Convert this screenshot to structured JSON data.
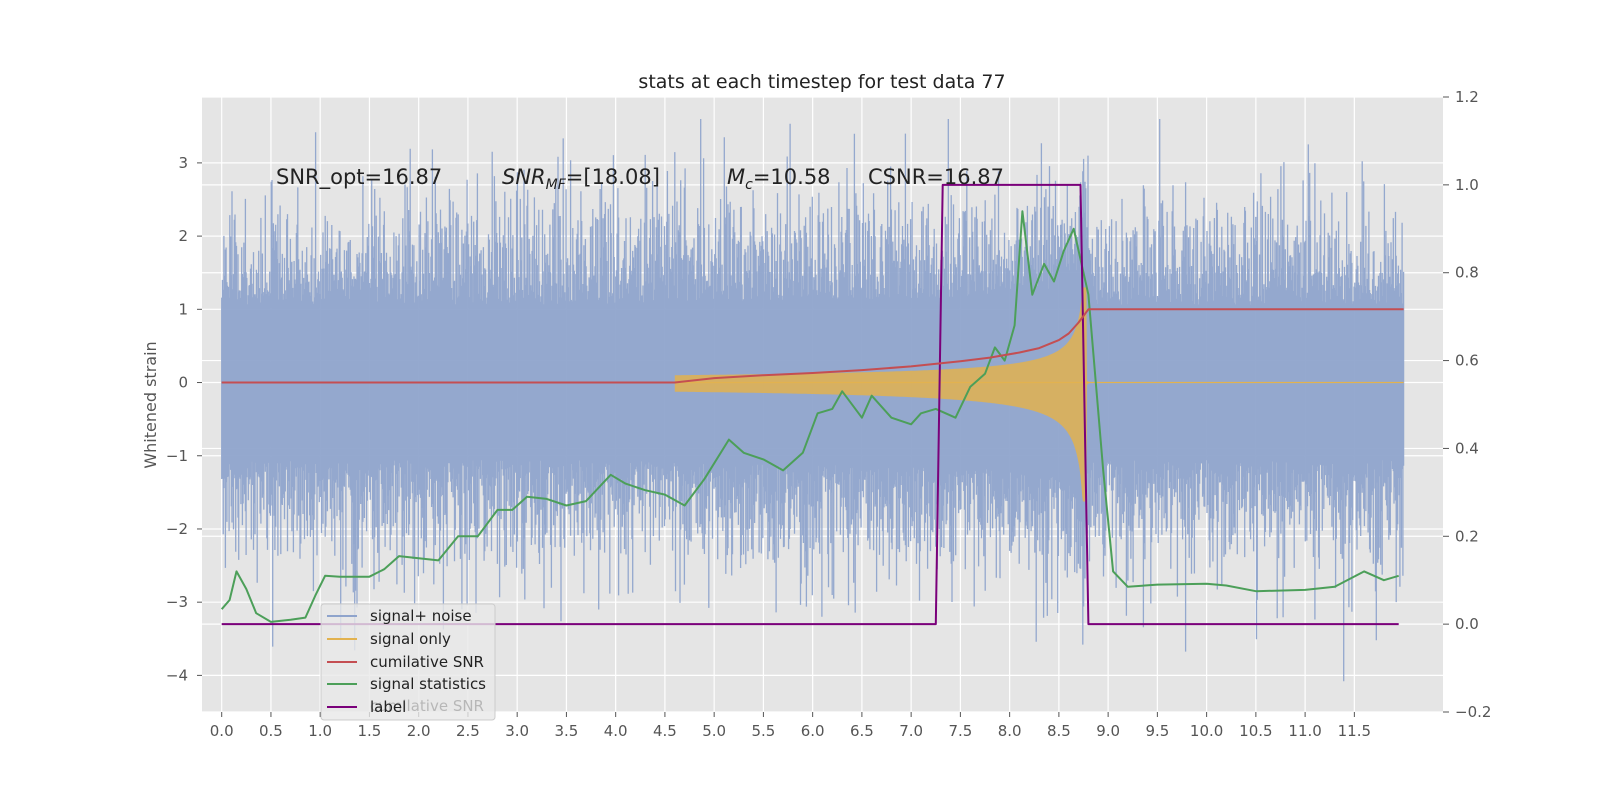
{
  "chart_data": {
    "type": "line",
    "title": "stats at each timestep for test data 77",
    "ylabel": "Whitened strain",
    "xlim": [
      -0.2,
      12.4
    ],
    "ylim": [
      -4.5,
      3.9
    ],
    "ylim_right": [
      -0.2,
      1.2
    ],
    "xticks": [
      "0.0",
      "0.5",
      "1.0",
      "1.5",
      "2.0",
      "2.5",
      "3.0",
      "3.5",
      "4.0",
      "4.5",
      "5.0",
      "5.5",
      "6.0",
      "6.5",
      "7.0",
      "7.5",
      "8.0",
      "8.5",
      "9.0",
      "9.5",
      "10.0",
      "10.5",
      "11.0",
      "11.5"
    ],
    "yticks_left": [
      "−4",
      "−3",
      "−2",
      "−1",
      "0",
      "1",
      "2",
      "3"
    ],
    "yticks_right": [
      "−0.2",
      "0.0",
      "0.2",
      "0.4",
      "0.6",
      "0.8",
      "1.0",
      "1.2"
    ],
    "grid": true,
    "legend_position": "lower-left",
    "annotations": {
      "snr_opt": "SNR_opt=16.87",
      "snr_mf_main": "SNR",
      "snr_mf_sub": "MF",
      "snr_mf_val": "=[18.08]",
      "mc_main": "M",
      "mc_sub": "c",
      "mc_val": "=10.58",
      "csnr": "CSNR=16.87"
    },
    "legend": {
      "items": [
        "signal+ noise",
        "signal only",
        "cumilative SNR",
        "signal statistics",
        "label"
      ],
      "ghost_text": "cumilative SNR"
    },
    "colors": {
      "noise": "#8fa4cc",
      "signal": "#e2b24f",
      "cumsnr": "#c44e52",
      "stats": "#4c9f59",
      "label": "#7a007a",
      "plot_bg": "#e5e5e5"
    },
    "series": [
      {
        "name": "cumilative SNR",
        "axis": "left",
        "points": [
          [
            0.0,
            0.0
          ],
          [
            1.0,
            0.0
          ],
          [
            2.0,
            0.0
          ],
          [
            3.0,
            0.0
          ],
          [
            4.0,
            0.0
          ],
          [
            4.6,
            0.0
          ],
          [
            5.0,
            0.06
          ],
          [
            5.5,
            0.1
          ],
          [
            6.0,
            0.13
          ],
          [
            6.5,
            0.17
          ],
          [
            7.0,
            0.22
          ],
          [
            7.5,
            0.29
          ],
          [
            7.8,
            0.34
          ],
          [
            8.1,
            0.41
          ],
          [
            8.3,
            0.47
          ],
          [
            8.5,
            0.58
          ],
          [
            8.6,
            0.67
          ],
          [
            8.7,
            0.82
          ],
          [
            8.8,
            1.0
          ],
          [
            9.0,
            1.0
          ],
          [
            10.0,
            1.0
          ],
          [
            11.0,
            1.0
          ],
          [
            12.0,
            1.0
          ]
        ]
      },
      {
        "name": "signal statistics",
        "axis": "right",
        "points": [
          [
            0.0,
            0.034
          ],
          [
            0.08,
            0.055
          ],
          [
            0.15,
            0.12
          ],
          [
            0.25,
            0.08
          ],
          [
            0.35,
            0.025
          ],
          [
            0.5,
            0.005
          ],
          [
            0.7,
            0.01
          ],
          [
            0.85,
            0.015
          ],
          [
            0.95,
            0.065
          ],
          [
            1.05,
            0.11
          ],
          [
            1.2,
            0.108
          ],
          [
            1.5,
            0.108
          ],
          [
            1.65,
            0.125
          ],
          [
            1.8,
            0.155
          ],
          [
            2.0,
            0.15
          ],
          [
            2.2,
            0.145
          ],
          [
            2.4,
            0.2
          ],
          [
            2.6,
            0.2
          ],
          [
            2.8,
            0.26
          ],
          [
            2.95,
            0.26
          ],
          [
            3.1,
            0.29
          ],
          [
            3.3,
            0.285
          ],
          [
            3.5,
            0.27
          ],
          [
            3.7,
            0.28
          ],
          [
            3.95,
            0.34
          ],
          [
            4.1,
            0.32
          ],
          [
            4.3,
            0.305
          ],
          [
            4.5,
            0.295
          ],
          [
            4.7,
            0.27
          ],
          [
            4.9,
            0.33
          ],
          [
            5.15,
            0.42
          ],
          [
            5.3,
            0.39
          ],
          [
            5.5,
            0.375
          ],
          [
            5.7,
            0.35
          ],
          [
            5.9,
            0.39
          ],
          [
            6.05,
            0.48
          ],
          [
            6.2,
            0.49
          ],
          [
            6.3,
            0.53
          ],
          [
            6.5,
            0.47
          ],
          [
            6.6,
            0.52
          ],
          [
            6.8,
            0.47
          ],
          [
            7.0,
            0.455
          ],
          [
            7.1,
            0.48
          ],
          [
            7.25,
            0.49
          ],
          [
            7.45,
            0.47
          ],
          [
            7.6,
            0.54
          ],
          [
            7.75,
            0.57
          ],
          [
            7.85,
            0.63
          ],
          [
            7.95,
            0.6
          ],
          [
            8.05,
            0.68
          ],
          [
            8.13,
            0.94
          ],
          [
            8.23,
            0.75
          ],
          [
            8.35,
            0.82
          ],
          [
            8.45,
            0.78
          ],
          [
            8.55,
            0.85
          ],
          [
            8.65,
            0.9
          ],
          [
            8.8,
            0.75
          ],
          [
            8.95,
            0.35
          ],
          [
            9.05,
            0.12
          ],
          [
            9.2,
            0.085
          ],
          [
            9.5,
            0.09
          ],
          [
            10.0,
            0.092
          ],
          [
            10.2,
            0.088
          ],
          [
            10.5,
            0.075
          ],
          [
            11.0,
            0.078
          ],
          [
            11.3,
            0.085
          ],
          [
            11.6,
            0.12
          ],
          [
            11.8,
            0.1
          ],
          [
            11.95,
            0.11
          ]
        ]
      },
      {
        "name": "label",
        "axis": "right",
        "points": [
          [
            0.0,
            0.0
          ],
          [
            7.25,
            0.0
          ],
          [
            7.32,
            1.0
          ],
          [
            8.72,
            1.0
          ],
          [
            8.8,
            0.0
          ],
          [
            11.95,
            0.0
          ]
        ]
      }
    ]
  }
}
